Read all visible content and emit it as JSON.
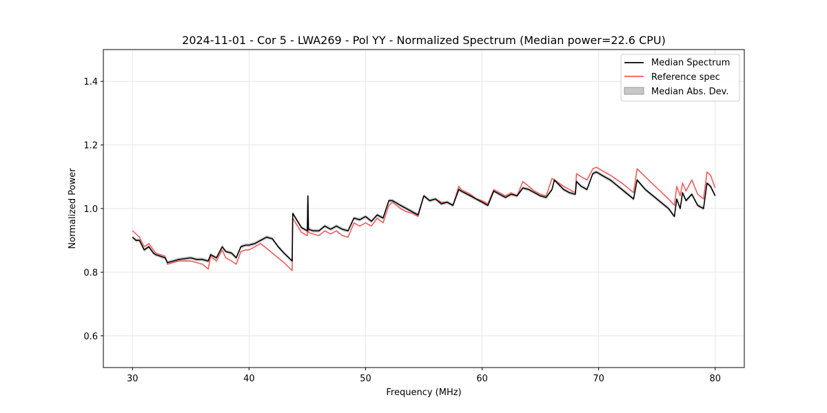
{
  "chart_data": {
    "type": "line",
    "title": "2024-11-01 - Cor 5 - LWA269 - Pol YY - Normalized Spectrum (Median power=22.6 CPU)",
    "xlabel": "Frequency (MHz)",
    "ylabel": "Normalized Power",
    "xlim": [
      27.5,
      82.5
    ],
    "ylim": [
      0.5,
      1.5
    ],
    "xticks": [
      30,
      40,
      50,
      60,
      70,
      80
    ],
    "yticks": [
      0.6,
      0.8,
      1.0,
      1.2,
      1.4
    ],
    "xtick_labels": [
      "30",
      "40",
      "50",
      "60",
      "70",
      "80"
    ],
    "ytick_labels": [
      "0.6",
      "0.8",
      "1.0",
      "1.2",
      "1.4"
    ],
    "grid": true,
    "legend_position": "top-right",
    "legend": [
      "Median Spectrum",
      "Reference spec",
      "Median Abs. Dev."
    ],
    "colors": {
      "median": "#000000",
      "reference": "#f0595a",
      "mad": "#c8c8c8"
    },
    "mad_halfwidth": 0.006,
    "series": [
      {
        "name": "Median Spectrum",
        "x": [
          30.0,
          30.3,
          30.6,
          31.0,
          31.4,
          31.8,
          32.0,
          32.4,
          32.8,
          33.0,
          33.5,
          34.0,
          35.0,
          35.5,
          36.0,
          36.5,
          36.7,
          37.2,
          37.7,
          38.0,
          38.5,
          38.9,
          39.3,
          39.7,
          40.0,
          40.5,
          41.0,
          41.5,
          42.0,
          42.5,
          43.0,
          43.7,
          43.75,
          44.5,
          45.0,
          45.05,
          45.1,
          45.5,
          46.0,
          46.5,
          47.0,
          47.5,
          48.0,
          48.5,
          49.0,
          49.5,
          50.0,
          50.5,
          51.0,
          51.5,
          52.0,
          52.3,
          53.0,
          53.5,
          54.0,
          54.5,
          55.0,
          55.5,
          56.0,
          56.5,
          57.0,
          57.5,
          58.0,
          58.2,
          59.0,
          59.5,
          60.0,
          60.5,
          61.0,
          61.5,
          62.0,
          62.5,
          63.0,
          63.5,
          64.0,
          64.5,
          65.0,
          65.5,
          66.0,
          66.2,
          67.0,
          67.5,
          68.0,
          68.1,
          68.5,
          69.0,
          69.5,
          69.8,
          70.5,
          71.0,
          72.0,
          73.0,
          73.3,
          74.0,
          75.0,
          76.0,
          76.5,
          76.7,
          77.0,
          77.2,
          77.5,
          78.0,
          78.5,
          79.0,
          79.3,
          79.6,
          80.0
        ],
        "y": [
          0.91,
          0.9,
          0.9,
          0.87,
          0.88,
          0.86,
          0.855,
          0.85,
          0.845,
          0.83,
          0.835,
          0.84,
          0.845,
          0.84,
          0.84,
          0.835,
          0.855,
          0.845,
          0.88,
          0.865,
          0.86,
          0.845,
          0.88,
          0.885,
          0.885,
          0.89,
          0.9,
          0.91,
          0.905,
          0.88,
          0.86,
          0.835,
          0.985,
          0.94,
          0.93,
          1.04,
          0.935,
          0.93,
          0.93,
          0.945,
          0.935,
          0.945,
          0.935,
          0.93,
          0.97,
          0.965,
          0.975,
          0.96,
          0.98,
          0.97,
          1.025,
          1.025,
          1.01,
          1.0,
          0.99,
          0.98,
          1.04,
          1.025,
          1.03,
          1.015,
          1.02,
          1.01,
          1.06,
          1.055,
          1.04,
          1.03,
          1.02,
          1.01,
          1.055,
          1.045,
          1.035,
          1.045,
          1.04,
          1.065,
          1.06,
          1.05,
          1.04,
          1.035,
          1.06,
          1.09,
          1.06,
          1.05,
          1.045,
          1.085,
          1.07,
          1.06,
          1.11,
          1.115,
          1.1,
          1.09,
          1.06,
          1.03,
          1.09,
          1.06,
          1.03,
          1.0,
          0.975,
          1.03,
          1.0,
          1.05,
          1.025,
          1.045,
          1.01,
          1.0,
          1.08,
          1.07,
          1.04
        ]
      },
      {
        "name": "Reference spec",
        "x": [
          30.0,
          30.3,
          30.6,
          31.0,
          31.4,
          31.8,
          32.0,
          32.4,
          32.8,
          33.0,
          33.5,
          34.0,
          35.0,
          35.5,
          36.0,
          36.5,
          36.7,
          37.2,
          37.7,
          38.0,
          38.5,
          38.9,
          39.3,
          39.7,
          40.0,
          40.5,
          41.0,
          41.5,
          42.0,
          42.5,
          43.0,
          43.7,
          43.75,
          44.5,
          45.0,
          45.05,
          45.1,
          45.5,
          46.0,
          46.5,
          47.0,
          47.5,
          48.0,
          48.5,
          49.0,
          49.5,
          50.0,
          50.5,
          51.0,
          51.5,
          52.0,
          52.3,
          53.0,
          53.5,
          54.0,
          54.5,
          55.0,
          55.5,
          56.0,
          56.5,
          57.0,
          57.5,
          58.0,
          58.2,
          59.0,
          59.5,
          60.0,
          60.5,
          61.0,
          61.5,
          62.0,
          62.5,
          63.0,
          63.5,
          64.0,
          64.5,
          65.0,
          65.5,
          66.0,
          66.2,
          67.0,
          67.5,
          68.0,
          68.1,
          68.5,
          69.0,
          69.5,
          69.8,
          70.5,
          71.0,
          72.0,
          73.0,
          73.3,
          74.0,
          75.0,
          76.0,
          76.5,
          76.7,
          77.0,
          77.2,
          77.5,
          78.0,
          78.5,
          79.0,
          79.3,
          79.6,
          80.0
        ],
        "y": [
          0.93,
          0.92,
          0.91,
          0.88,
          0.89,
          0.87,
          0.86,
          0.855,
          0.85,
          0.825,
          0.83,
          0.835,
          0.835,
          0.83,
          0.825,
          0.81,
          0.85,
          0.835,
          0.87,
          0.845,
          0.835,
          0.825,
          0.865,
          0.87,
          0.87,
          0.88,
          0.89,
          0.875,
          0.86,
          0.845,
          0.83,
          0.805,
          0.97,
          0.925,
          0.915,
          1.04,
          0.925,
          0.92,
          0.915,
          0.93,
          0.92,
          0.93,
          0.915,
          0.91,
          0.955,
          0.945,
          0.955,
          0.945,
          0.97,
          0.955,
          1.01,
          1.02,
          1.0,
          0.99,
          0.985,
          0.975,
          1.04,
          1.025,
          1.03,
          1.02,
          1.02,
          1.01,
          1.07,
          1.06,
          1.045,
          1.03,
          1.025,
          1.015,
          1.06,
          1.05,
          1.04,
          1.05,
          1.04,
          1.085,
          1.07,
          1.055,
          1.045,
          1.04,
          1.095,
          1.09,
          1.07,
          1.06,
          1.05,
          1.11,
          1.1,
          1.09,
          1.125,
          1.13,
          1.115,
          1.105,
          1.08,
          1.05,
          1.125,
          1.1,
          1.065,
          1.03,
          1.01,
          1.07,
          1.04,
          1.08,
          1.055,
          1.09,
          1.045,
          1.03,
          1.115,
          1.105,
          1.065
        ]
      }
    ]
  }
}
